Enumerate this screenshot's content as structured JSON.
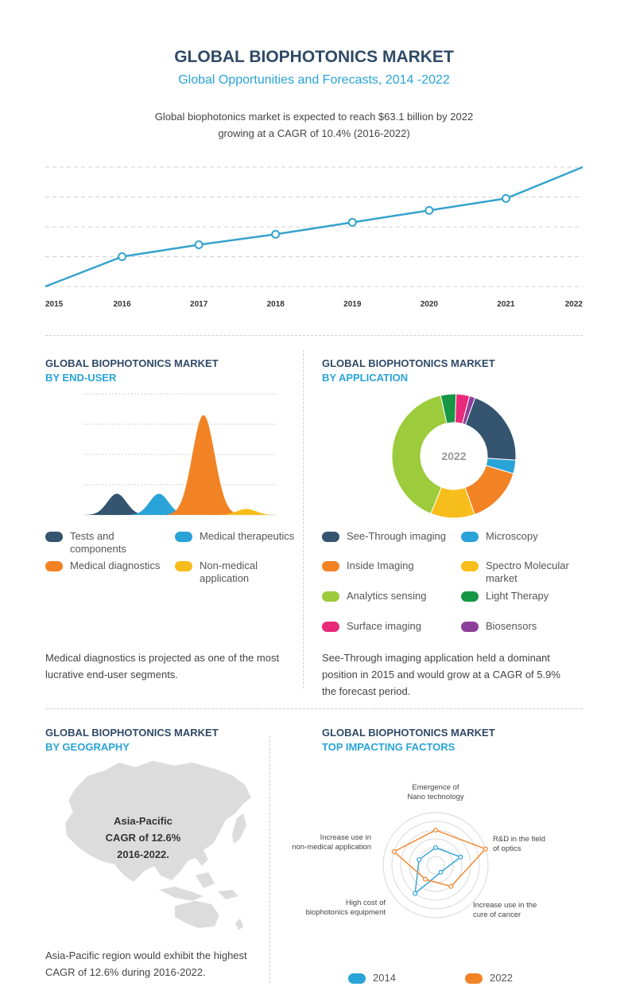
{
  "header": {
    "title": "GLOBAL BIOPHOTONICS MARKET",
    "subtitle": "Global Opportunities and Forecasts, 2014 -2022",
    "intro_line1": "Global biophotonics market is expected to reach $63.1 billion by 2022",
    "intro_line2": "growing at a CAGR of 10.4% (2016-2022)"
  },
  "colors": {
    "navy": "#34546f",
    "sky": "#2aa3d8",
    "orange": "#f28325",
    "yellow": "#f7bd1b",
    "green": "#9ccb3b",
    "dark_green": "#159746",
    "pink": "#e9297a",
    "purple": "#8c3f98",
    "line": "#36a3cd"
  },
  "chart_data": [
    {
      "type": "line",
      "x": [
        "2015",
        "2016",
        "2017",
        "2018",
        "2019",
        "2020",
        "2021",
        "2022"
      ],
      "series": [
        {
          "values": [
            0,
            1,
            1.4,
            1.75,
            2.15,
            2.55,
            2.95,
            4.0
          ],
          "markers": [
            false,
            true,
            true,
            true,
            true,
            true,
            true,
            false
          ]
        }
      ],
      "ylim": [
        0,
        4
      ],
      "grid": true,
      "y_ticks_shown": false
    },
    {
      "type": "area",
      "title": "GLOBAL BIOPHOTONICS MARKET",
      "subtitle": "BY END-USER",
      "series": [
        {
          "name": "Tests and components",
          "color": "#34546f",
          "peak": 0.7
        },
        {
          "name": "Medical therapeutics",
          "color": "#2aa3d8",
          "peak": 0.7
        },
        {
          "name": "Medical diagnostics",
          "color": "#f28325",
          "peak": 3.3
        },
        {
          "name": "Non-medical application",
          "color": "#f7bd1b",
          "peak": 0.2
        }
      ],
      "ylim": [
        0,
        4
      ],
      "grid": true
    },
    {
      "type": "pie",
      "title": "GLOBAL BIOPHOTONICS MARKET",
      "subtitle": "BY APPLICATION",
      "center_label": "2022",
      "slices": [
        {
          "label": "See-Through imaging",
          "value": 20.5,
          "color": "#34546f"
        },
        {
          "label": "Microscopy",
          "value": 3.5,
          "color": "#2aa3d8"
        },
        {
          "label": "Inside Imaging",
          "value": 15,
          "color": "#f28325"
        },
        {
          "label": "Spectro Molecular market",
          "value": 11.5,
          "color": "#f7bd1b"
        },
        {
          "label": "Analytics sensing",
          "value": 40.5,
          "color": "#9ccb3b"
        },
        {
          "label": "Light Therapy",
          "value": 4,
          "color": "#159746"
        },
        {
          "label": "Surface imaging",
          "value": 3.5,
          "color": "#e9297a"
        },
        {
          "label": "Biosensors",
          "value": 1.5,
          "color": "#8c3f98"
        }
      ]
    },
    {
      "type": "radar",
      "title": "GLOBAL BIOPHOTONICS MARKET",
      "subtitle": "TOP IMPACTING FACTORS",
      "axes": [
        {
          "line1": "Emergence of",
          "line2": "Nano technology"
        },
        {
          "line1": "R&D in the field",
          "line2": "of optics"
        },
        {
          "line1": "Increase use in the",
          "line2": "cure of cancer"
        },
        {
          "line1": "High cost of",
          "line2": "biophotonics equipment"
        },
        {
          "line1": "Increase use in",
          "line2": "non-medical application"
        }
      ],
      "levels": 6,
      "max": 6,
      "series": [
        {
          "name": "2014",
          "values": [
            2,
            3,
            1,
            4,
            2
          ],
          "color": "#2aa3d8"
        },
        {
          "name": "2022",
          "values": [
            4,
            6,
            3,
            2,
            5
          ],
          "color": "#f28325"
        }
      ]
    }
  ],
  "end_user": {
    "title": "GLOBAL BIOPHOTONICS MARKET",
    "subtitle": "BY END-USER",
    "legend": [
      {
        "label": "Tests and components",
        "color": "#34546f"
      },
      {
        "label": "Medical therapeutics",
        "color": "#2aa3d8"
      },
      {
        "label": "Medical diagnostics",
        "color": "#f28325"
      },
      {
        "label": "Non-medical application",
        "color": "#f7bd1b"
      }
    ],
    "note_line1": "Medical diagnostics  is projected as one of the most",
    "note_line2": "lucrative end-user segments."
  },
  "application": {
    "title": "GLOBAL BIOPHOTONICS MARKET",
    "subtitle": "BY APPLICATION",
    "legend": [
      {
        "label": "See-Through imaging",
        "color": "#34546f"
      },
      {
        "label": "Microscopy",
        "color": "#2aa3d8"
      },
      {
        "label": "Inside Imaging",
        "color": "#f28325"
      },
      {
        "label": "Spectro Molecular market",
        "color": "#f7bd1b"
      },
      {
        "label": "Analytics sensing",
        "color": "#9ccb3b"
      },
      {
        "label": "Light Therapy",
        "color": "#159746"
      },
      {
        "label": "Surface imaging",
        "color": "#e9297a"
      },
      {
        "label": "Biosensors",
        "color": "#8c3f98"
      }
    ],
    "note_line1": "See-Through imaging application  held a dominant",
    "note_line2": "position in 2015 and would grow at a CAGR of 5.9%",
    "note_line3": "the forecast period."
  },
  "geography": {
    "title": "GLOBAL BIOPHOTONICS MARKET",
    "subtitle": "BY GEOGRAPHY",
    "region": "Asia-Pacific",
    "cagr": "CAGR of 12.6%",
    "period": "2016-2022.",
    "note_line1": "Asia-Pacific region would exhibit the highest",
    "note_line2": "CAGR of 12.6% during 2016-2022."
  },
  "factors": {
    "title": "GLOBAL BIOPHOTONICS MARKET",
    "subtitle": "TOP IMPACTING FACTORS",
    "legend": [
      {
        "label": "2014",
        "color": "#2aa3d8"
      },
      {
        "label": "2022",
        "color": "#f28325"
      }
    ]
  }
}
